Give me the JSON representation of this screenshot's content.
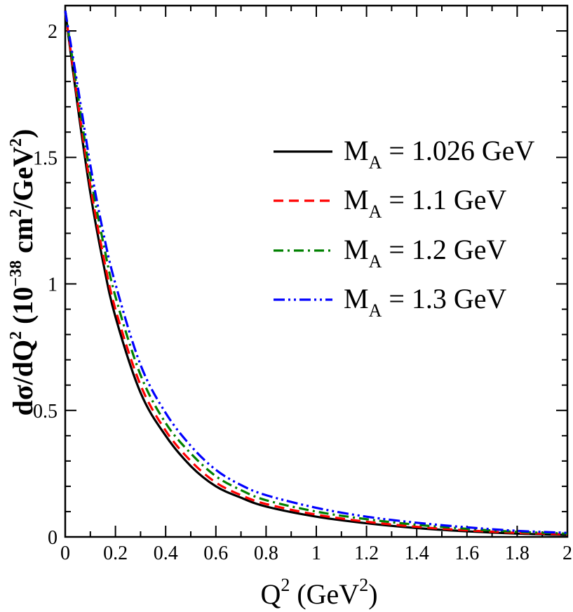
{
  "chart_data": {
    "type": "line",
    "title": "",
    "xlabel": {
      "base": "Q",
      "sup": "2",
      "unit_open": " (GeV",
      "unit_sup": "2",
      "unit_close": ")"
    },
    "ylabel": {
      "text1": "dσ/dQ",
      "sup1": "2",
      "text2": " (10",
      "sup2": "−38",
      "text3": " cm",
      "sup3": "2",
      "text4": "/GeV",
      "sup4": "2",
      "text5": ")"
    },
    "xlim": [
      0,
      2
    ],
    "ylim": [
      0,
      2.1
    ],
    "x_ticks": [
      0,
      0.2,
      0.4,
      0.6,
      0.8,
      1,
      1.2,
      1.4,
      1.6,
      1.8,
      2
    ],
    "x_tick_labels": [
      "0",
      "0.2",
      "0.4",
      "0.6",
      "0.8",
      "1",
      "1.2",
      "1.4",
      "1.6",
      "1.8",
      "2"
    ],
    "y_ticks": [
      0,
      0.5,
      1,
      1.5,
      2
    ],
    "y_tick_labels": [
      "0",
      "0.5",
      "1",
      "1.5",
      "2"
    ],
    "grid": false,
    "legend_position": "top-right",
    "series": [
      {
        "name": "M_A = 1.026 GeV",
        "label_main": "M",
        "label_sub": "A",
        "label_rest": " = 1.026 GeV",
        "color": "#000000",
        "dash": "solid",
        "x": [
          0,
          0.05,
          0.1,
          0.15,
          0.2,
          0.3,
          0.4,
          0.5,
          0.6,
          0.7,
          0.8,
          1.0,
          1.2,
          1.4,
          1.6,
          1.8,
          2.0
        ],
        "y": [
          2.08,
          1.7,
          1.36,
          1.09,
          0.87,
          0.57,
          0.4,
          0.28,
          0.2,
          0.155,
          0.12,
          0.08,
          0.054,
          0.035,
          0.022,
          0.013,
          0.008
        ]
      },
      {
        "name": "M_A = 1.1 GeV",
        "label_main": "M",
        "label_sub": "A",
        "label_rest": " = 1.1 GeV",
        "color": "#ff0000",
        "dash": "dashed",
        "x": [
          0,
          0.05,
          0.1,
          0.15,
          0.2,
          0.3,
          0.4,
          0.5,
          0.6,
          0.7,
          0.8,
          1.0,
          1.2,
          1.4,
          1.6,
          1.8,
          2.0
        ],
        "y": [
          2.08,
          1.72,
          1.39,
          1.12,
          0.9,
          0.6,
          0.42,
          0.3,
          0.215,
          0.165,
          0.13,
          0.088,
          0.06,
          0.04,
          0.026,
          0.016,
          0.01
        ]
      },
      {
        "name": "M_A = 1.2 GeV",
        "label_main": "M",
        "label_sub": "A",
        "label_rest": " = 1.2 GeV",
        "color": "#008000",
        "dash": "dash-dot",
        "x": [
          0,
          0.05,
          0.1,
          0.15,
          0.2,
          0.3,
          0.4,
          0.5,
          0.6,
          0.7,
          0.8,
          1.0,
          1.2,
          1.4,
          1.6,
          1.8,
          2.0
        ],
        "y": [
          2.08,
          1.75,
          1.43,
          1.17,
          0.95,
          0.64,
          0.45,
          0.33,
          0.24,
          0.185,
          0.145,
          0.1,
          0.07,
          0.048,
          0.032,
          0.02,
          0.013
        ]
      },
      {
        "name": "M_A = 1.3 GeV",
        "label_main": "M",
        "label_sub": "A",
        "label_rest": " = 1.3 GeV",
        "color": "#0000ff",
        "dash": "dash-dot-dot",
        "x": [
          0,
          0.05,
          0.1,
          0.15,
          0.2,
          0.3,
          0.4,
          0.5,
          0.6,
          0.7,
          0.8,
          1.0,
          1.2,
          1.4,
          1.6,
          1.8,
          2.0
        ],
        "y": [
          2.08,
          1.78,
          1.47,
          1.21,
          1.0,
          0.68,
          0.49,
          0.36,
          0.265,
          0.205,
          0.165,
          0.115,
          0.08,
          0.056,
          0.038,
          0.024,
          0.016
        ]
      }
    ]
  }
}
